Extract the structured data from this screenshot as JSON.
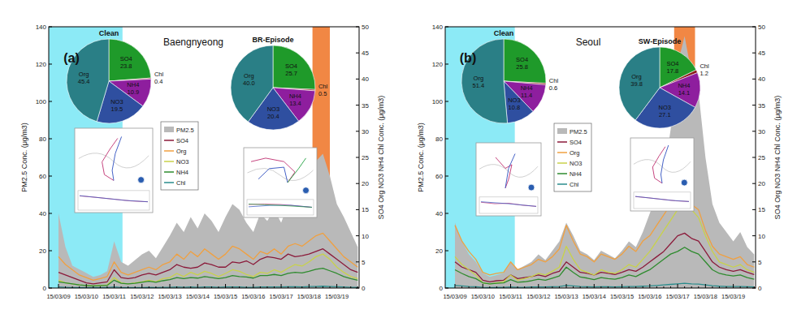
{
  "chart_data": [
    {
      "type": "line",
      "title": "Baengnyeong",
      "subtitle": "(a)",
      "y_label": "PM2.5 Conc. (μg/m3)",
      "y2_label": "SO4 Org NO3 NH4 Chl Conc. (μg/m3)",
      "categories": [
        "15/03/09",
        null,
        null,
        null,
        "15/03/10",
        null,
        null,
        null,
        "15/03/11",
        null,
        null,
        null,
        "15/03/12",
        null,
        null,
        null,
        "15/03/13",
        null,
        null,
        null,
        "15/03/14",
        null,
        null,
        null,
        "15/03/15",
        null,
        null,
        null,
        "15/03/16",
        null,
        null,
        null,
        "15/03/17",
        null,
        null,
        null,
        "15/03/18",
        null,
        null,
        null,
        "15/03/19",
        null,
        null,
        null
      ],
      "series": [
        {
          "name": "PM2.5",
          "type": "area",
          "color": "#b9b9b9",
          "values": [
            40,
            22,
            12,
            10,
            8,
            6,
            7,
            9,
            25,
            14,
            12,
            15,
            18,
            20,
            16,
            22,
            28,
            35,
            30,
            38,
            32,
            40,
            36,
            30,
            38,
            45,
            42,
            35,
            30,
            40,
            36,
            42,
            35,
            45,
            50,
            48,
            55,
            68,
            72,
            60,
            45,
            38,
            30,
            22
          ]
        },
        {
          "name": "SO4",
          "type": "line",
          "axis": "y2",
          "color": "#8b1a3a",
          "values": [
            3,
            2.5,
            2,
            1.5,
            1,
            0.8,
            1,
            1.2,
            3.5,
            2,
            1.8,
            2,
            2.5,
            2.8,
            2.5,
            3,
            3.5,
            4.5,
            4,
            3.8,
            4,
            4.8,
            4.5,
            4,
            4,
            5,
            4.8,
            5.2,
            4.5,
            5.5,
            6,
            5.8,
            5.5,
            6.5,
            6,
            6.2,
            6.5,
            7,
            7.5,
            6.5,
            5.5,
            4.5,
            3.5,
            3
          ]
        },
        {
          "name": "Org",
          "type": "line",
          "axis": "y2",
          "color": "#f0a040",
          "values": [
            6,
            4.5,
            3.5,
            2.5,
            2,
            1.5,
            1.8,
            2.2,
            5,
            3,
            2.5,
            3,
            3.5,
            4,
            3.5,
            4.5,
            5,
            6.5,
            5.5,
            7,
            6,
            7.5,
            6.5,
            5.5,
            6.5,
            8,
            7.5,
            6.5,
            5.5,
            7,
            6.5,
            7.5,
            6.5,
            8,
            8.5,
            8,
            9,
            10,
            10.5,
            9,
            7.5,
            6,
            5,
            4
          ]
        },
        {
          "name": "NO3",
          "type": "line",
          "axis": "y2",
          "color": "#c8d24a",
          "values": [
            1.5,
            1,
            0.8,
            0.6,
            0.5,
            0.4,
            0.5,
            0.6,
            2,
            1,
            0.8,
            1,
            1.2,
            1.5,
            1.2,
            1.8,
            2,
            2.8,
            2.2,
            3,
            2.5,
            3.2,
            2.8,
            2.2,
            2.8,
            3.5,
            3.2,
            2.6,
            2.2,
            3,
            2.8,
            3.5,
            3,
            3.8,
            4.5,
            4.2,
            5,
            6,
            6.5,
            5.5,
            4,
            3,
            2.2,
            1.8
          ]
        },
        {
          "name": "NH4",
          "type": "line",
          "axis": "y2",
          "color": "#2e8b2e",
          "values": [
            1.2,
            1,
            0.8,
            0.6,
            0.5,
            0.4,
            0.5,
            0.5,
            1.5,
            0.9,
            0.8,
            0.9,
            1.1,
            1.3,
            1.1,
            1.4,
            1.6,
            2,
            1.8,
            2,
            1.9,
            2.2,
            2,
            1.8,
            2,
            2.4,
            2.2,
            2.1,
            1.9,
            2.4,
            2.4,
            2.6,
            2.4,
            2.8,
            3,
            2.9,
            3.2,
            3.6,
            3.8,
            3.3,
            2.8,
            2.2,
            1.8,
            1.5
          ]
        },
        {
          "name": "Chl",
          "type": "line",
          "axis": "y2",
          "color": "#2a8c8c",
          "values": [
            0.2,
            0.15,
            0.1,
            0.1,
            0.1,
            0.1,
            0.1,
            0.1,
            0.2,
            0.1,
            0.1,
            0.1,
            0.1,
            0.15,
            0.1,
            0.15,
            0.15,
            0.2,
            0.15,
            0.2,
            0.15,
            0.2,
            0.2,
            0.15,
            0.2,
            0.2,
            0.2,
            0.15,
            0.15,
            0.2,
            0.2,
            0.2,
            0.2,
            0.25,
            0.25,
            0.2,
            0.3,
            0.3,
            0.35,
            0.3,
            0.25,
            0.2,
            0.15,
            0.15
          ]
        }
      ],
      "highlights": [
        {
          "from": -1.4,
          "to": 9.2,
          "color": "#7fe8f5"
        },
        {
          "from": 36.5,
          "to": 39,
          "color": "#f07a30"
        }
      ],
      "ylim": [
        0,
        140
      ],
      "yticks": [
        0,
        20,
        40,
        60,
        80,
        100,
        120,
        140
      ],
      "y2lim": [
        0,
        50
      ],
      "y2ticks": [
        0,
        5,
        10,
        15,
        20,
        25,
        30,
        35,
        40,
        45,
        50
      ]
    },
    {
      "type": "pie",
      "title": "Clean",
      "categories": [
        "SO4",
        "Chl",
        "NH4",
        "NO3",
        "Org"
      ],
      "values": [
        23.8,
        0.4,
        10.9,
        19.5,
        45.4
      ],
      "value_labels": [
        "23.8",
        "0.4",
        "10.9",
        "19.5",
        "45.4"
      ],
      "colors": [
        "#1f9a2a",
        "#8b1a1a",
        "#8e1e9e",
        "#2f4fa0",
        "#2a7f86"
      ],
      "data_labels": true
    },
    {
      "type": "pie",
      "title": "BR-Episode",
      "categories": [
        "SO4",
        "Chl",
        "NH4",
        "NO3",
        "Org"
      ],
      "values": [
        25.7,
        0.5,
        13.4,
        20.4,
        40.0
      ],
      "value_labels": [
        "25.7",
        "0.5",
        "13.4",
        "20.4",
        "40.0"
      ],
      "colors": [
        "#1f9a2a",
        "#8b1a1a",
        "#8e1e9e",
        "#2f4fa0",
        "#2a7f86"
      ],
      "data_labels": true
    },
    {
      "type": "line",
      "title": "Seoul",
      "subtitle": "(b)",
      "y_label": "PM2.5 Conc. (μg/m3)",
      "y2_label": "SO4 Org NO3 NH4 Chl Conc. (μg/m3)",
      "categories": [
        "15/03/09",
        null,
        null,
        null,
        "15/03/10",
        null,
        null,
        null,
        "15/03/11",
        null,
        null,
        null,
        "15/03/12",
        null,
        null,
        null,
        "15/03/13",
        null,
        null,
        null,
        "15/03/14",
        null,
        null,
        null,
        "15/03/15",
        null,
        null,
        null,
        "15/03/16",
        null,
        null,
        null,
        "15/03/17",
        null,
        null,
        null,
        "15/03/18",
        null,
        null,
        null,
        "15/03/19",
        null,
        null,
        null
      ],
      "series": [
        {
          "name": "PM2.5",
          "type": "area",
          "color": "#b9b9b9",
          "values": [
            35,
            25,
            18,
            14,
            8,
            6,
            7,
            8,
            14,
            10,
            12,
            14,
            18,
            15,
            20,
            25,
            35,
            28,
            20,
            18,
            15,
            20,
            18,
            16,
            20,
            25,
            22,
            30,
            40,
            50,
            60,
            85,
            120,
            135,
            115,
            105,
            70,
            45,
            35,
            30,
            25,
            30,
            22,
            18
          ]
        },
        {
          "name": "SO4",
          "type": "line",
          "axis": "y2",
          "color": "#8b1a3a",
          "values": [
            5,
            4,
            3.5,
            3,
            1.5,
            1.2,
            1.4,
            1.5,
            2.5,
            1.8,
            2,
            2.2,
            2.5,
            2.2,
            2.8,
            3.2,
            5,
            4,
            3,
            2.8,
            2.5,
            3,
            2.8,
            2.6,
            3,
            3.5,
            3.2,
            4,
            5,
            6,
            7,
            8.5,
            10,
            10.5,
            9.5,
            9,
            7,
            5,
            4,
            3.5,
            3.2,
            3.5,
            3,
            2.6
          ]
        },
        {
          "name": "Org",
          "type": "line",
          "axis": "y2",
          "color": "#f0a040",
          "values": [
            12,
            9,
            7,
            5.5,
            3,
            2.5,
            2.8,
            3,
            5,
            3.5,
            4,
            4.5,
            5.5,
            5,
            6,
            7.5,
            12,
            9,
            6.5,
            6,
            5,
            6.5,
            6,
            5.5,
            6.5,
            8,
            7,
            9,
            10,
            12,
            14,
            16,
            17,
            17.5,
            16,
            15,
            11,
            8,
            6.5,
            6,
            5.5,
            6,
            4.5,
            4
          ]
        },
        {
          "name": "NO3",
          "type": "line",
          "axis": "y2",
          "color": "#c8d24a",
          "values": [
            6,
            4.5,
            3.5,
            2.5,
            1,
            0.8,
            1,
            1.2,
            2.5,
            1.5,
            1.8,
            2.2,
            2.8,
            2.5,
            3.2,
            4,
            8,
            5.5,
            3.5,
            3,
            2.5,
            3.5,
            3,
            2.8,
            3.5,
            4.5,
            4,
            5.5,
            7,
            9,
            11,
            13,
            15,
            16.5,
            15,
            13.5,
            10,
            7,
            5,
            4.5,
            4,
            4.5,
            3.5,
            3
          ]
        },
        {
          "name": "NH4",
          "type": "line",
          "axis": "y2",
          "color": "#2e8b2e",
          "values": [
            3.5,
            2.8,
            2.2,
            1.8,
            1,
            0.8,
            0.9,
            1,
            1.6,
            1.1,
            1.2,
            1.4,
            1.7,
            1.5,
            1.9,
            2.3,
            4,
            3,
            2.1,
            1.9,
            1.6,
            2,
            1.8,
            1.7,
            2,
            2.5,
            2.2,
            2.9,
            3.5,
            4.5,
            5.5,
            6.5,
            7,
            7.8,
            7,
            6.5,
            5,
            3.5,
            2.8,
            2.5,
            2.3,
            2.5,
            2,
            1.7
          ]
        },
        {
          "name": "Chl",
          "type": "line",
          "axis": "y2",
          "color": "#2a8c8c",
          "values": [
            0.5,
            0.4,
            0.3,
            0.25,
            0.15,
            0.1,
            0.12,
            0.15,
            0.2,
            0.15,
            0.15,
            0.2,
            0.2,
            0.2,
            0.25,
            0.3,
            0.5,
            0.4,
            0.3,
            0.25,
            0.2,
            0.25,
            0.25,
            0.2,
            0.25,
            0.3,
            0.3,
            0.35,
            0.4,
            0.5,
            0.6,
            0.7,
            0.8,
            0.9,
            0.8,
            0.75,
            0.6,
            0.45,
            0.35,
            0.3,
            0.3,
            0.3,
            0.25,
            0.2
          ]
        }
      ],
      "highlights": [
        {
          "from": -1.4,
          "to": 8.6,
          "color": "#7fe8f5"
        },
        {
          "from": 31.5,
          "to": 34.5,
          "color": "#f07a30"
        }
      ],
      "ylim": [
        0,
        140
      ],
      "yticks": [
        0,
        20,
        40,
        60,
        80,
        100,
        120,
        140
      ],
      "y2lim": [
        0,
        50
      ],
      "y2ticks": [
        0,
        5,
        10,
        15,
        20,
        25,
        30,
        35,
        40,
        45,
        50
      ]
    },
    {
      "type": "pie",
      "title": "Clean",
      "categories": [
        "SO4",
        "Chl",
        "NH4",
        "NO3",
        "Org"
      ],
      "values": [
        25.8,
        0.6,
        11.4,
        10.8,
        51.4
      ],
      "value_labels": [
        "25.8",
        "0.6",
        "11.4",
        "10.8",
        "51.4"
      ],
      "colors": [
        "#1f9a2a",
        "#8b1a1a",
        "#8e1e9e",
        "#2f4fa0",
        "#2a7f86"
      ],
      "data_labels": true
    },
    {
      "type": "pie",
      "title": "SW-Episode",
      "categories": [
        "SO4",
        "Chl",
        "NH4",
        "NO3",
        "Org"
      ],
      "values": [
        17.8,
        1.2,
        14.1,
        27.1,
        39.8
      ],
      "value_labels": [
        "17.8",
        "1.2",
        "14.1",
        "27.1",
        "39.8"
      ],
      "colors": [
        "#1f9a2a",
        "#8b1a1a",
        "#8e1e9e",
        "#2f4fa0",
        "#2a7f86"
      ],
      "data_labels": true
    }
  ]
}
